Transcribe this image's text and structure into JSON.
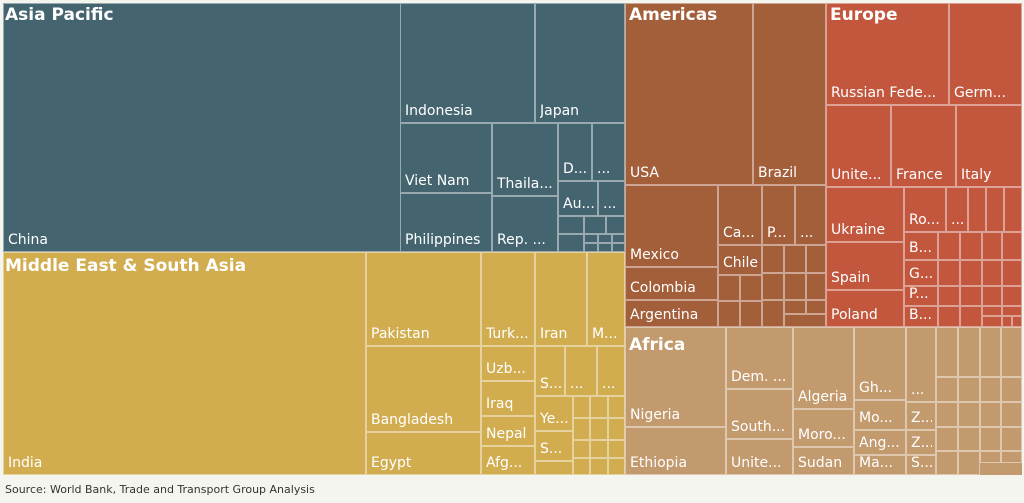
{
  "chart_data": {
    "type": "treemap",
    "regions": [
      {
        "name": "Asia Pacific",
        "color": "#446570",
        "labeled": [
          "China",
          "Indonesia",
          "Japan",
          "Viet Nam",
          "Thaila...",
          "D...",
          "...",
          "Au...",
          "...",
          "Philippines",
          "Rep. ..."
        ],
        "unlabeled_count": 10
      },
      {
        "name": "Middle East & South Asia",
        "color": "#d1ad4f",
        "labeled": [
          "India",
          "Pakistan",
          "Turk...",
          "Iran",
          "M...",
          "Uzb...",
          "S...",
          "...",
          "...",
          "Iraq",
          "Ye...",
          "Nepal",
          "S...",
          "Afg...",
          "Bangladesh",
          "Egypt"
        ],
        "unlabeled_count": 14
      },
      {
        "name": "Americas",
        "color": "#a35e3a",
        "labeled": [
          "USA",
          "Brazil",
          "Mexico",
          "Ca...",
          "P...",
          "...",
          "Chile",
          "Colombia",
          "Argentina"
        ],
        "unlabeled_count": 14
      },
      {
        "name": "Europe",
        "color": "#c2573e",
        "labeled": [
          "Russian Fede...",
          "Germ...",
          "Unite...",
          "France",
          "Italy",
          "Ukraine",
          "Ro...",
          "...",
          "B...",
          "Spain",
          "G...",
          "P...",
          "Poland",
          "B..."
        ],
        "unlabeled_count": 22
      },
      {
        "name": "Africa",
        "color": "#c29a6d",
        "labeled": [
          "Nigeria",
          "Dem. ...",
          "Algeria",
          "Gh...",
          "...",
          "South...",
          "Moro...",
          "Mo...",
          "Z...",
          "Ang...",
          "Z...",
          "Ethiopia",
          "Unite...",
          "Sudan",
          "Ma...",
          "S..."
        ],
        "unlabeled_count": 20
      }
    ]
  },
  "footer": {
    "source": "Source: World Bank, Trade and Transport Group Analysis"
  }
}
